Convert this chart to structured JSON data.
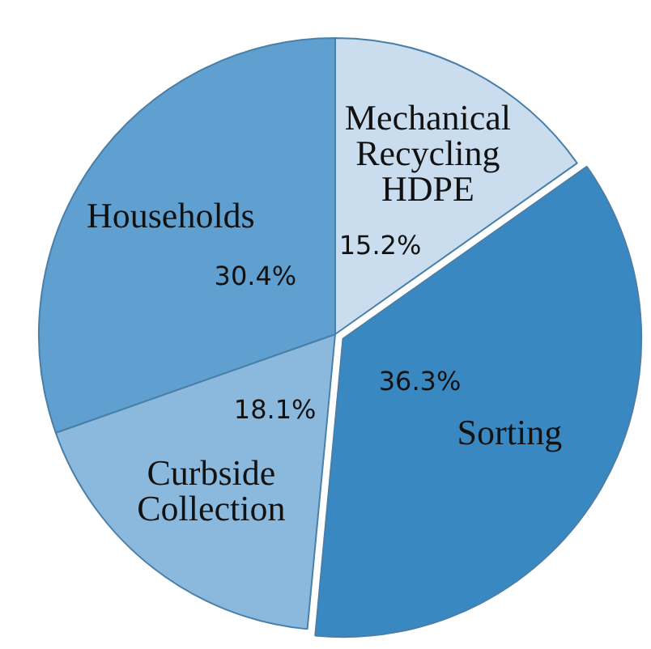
{
  "chart_data": {
    "type": "pie",
    "categories": [
      "Mechanical Recycling HDPE",
      "Sorting",
      "Curbside Collection",
      "Households"
    ],
    "values": [
      15.2,
      36.3,
      18.1,
      30.4
    ],
    "colors": [
      "#c9ddef",
      "#3a88c1",
      "#8bb9dd",
      "#5fa0d0"
    ],
    "value_labels": [
      "15.2%",
      "36.3%",
      "18.1%",
      "30.4%"
    ]
  }
}
